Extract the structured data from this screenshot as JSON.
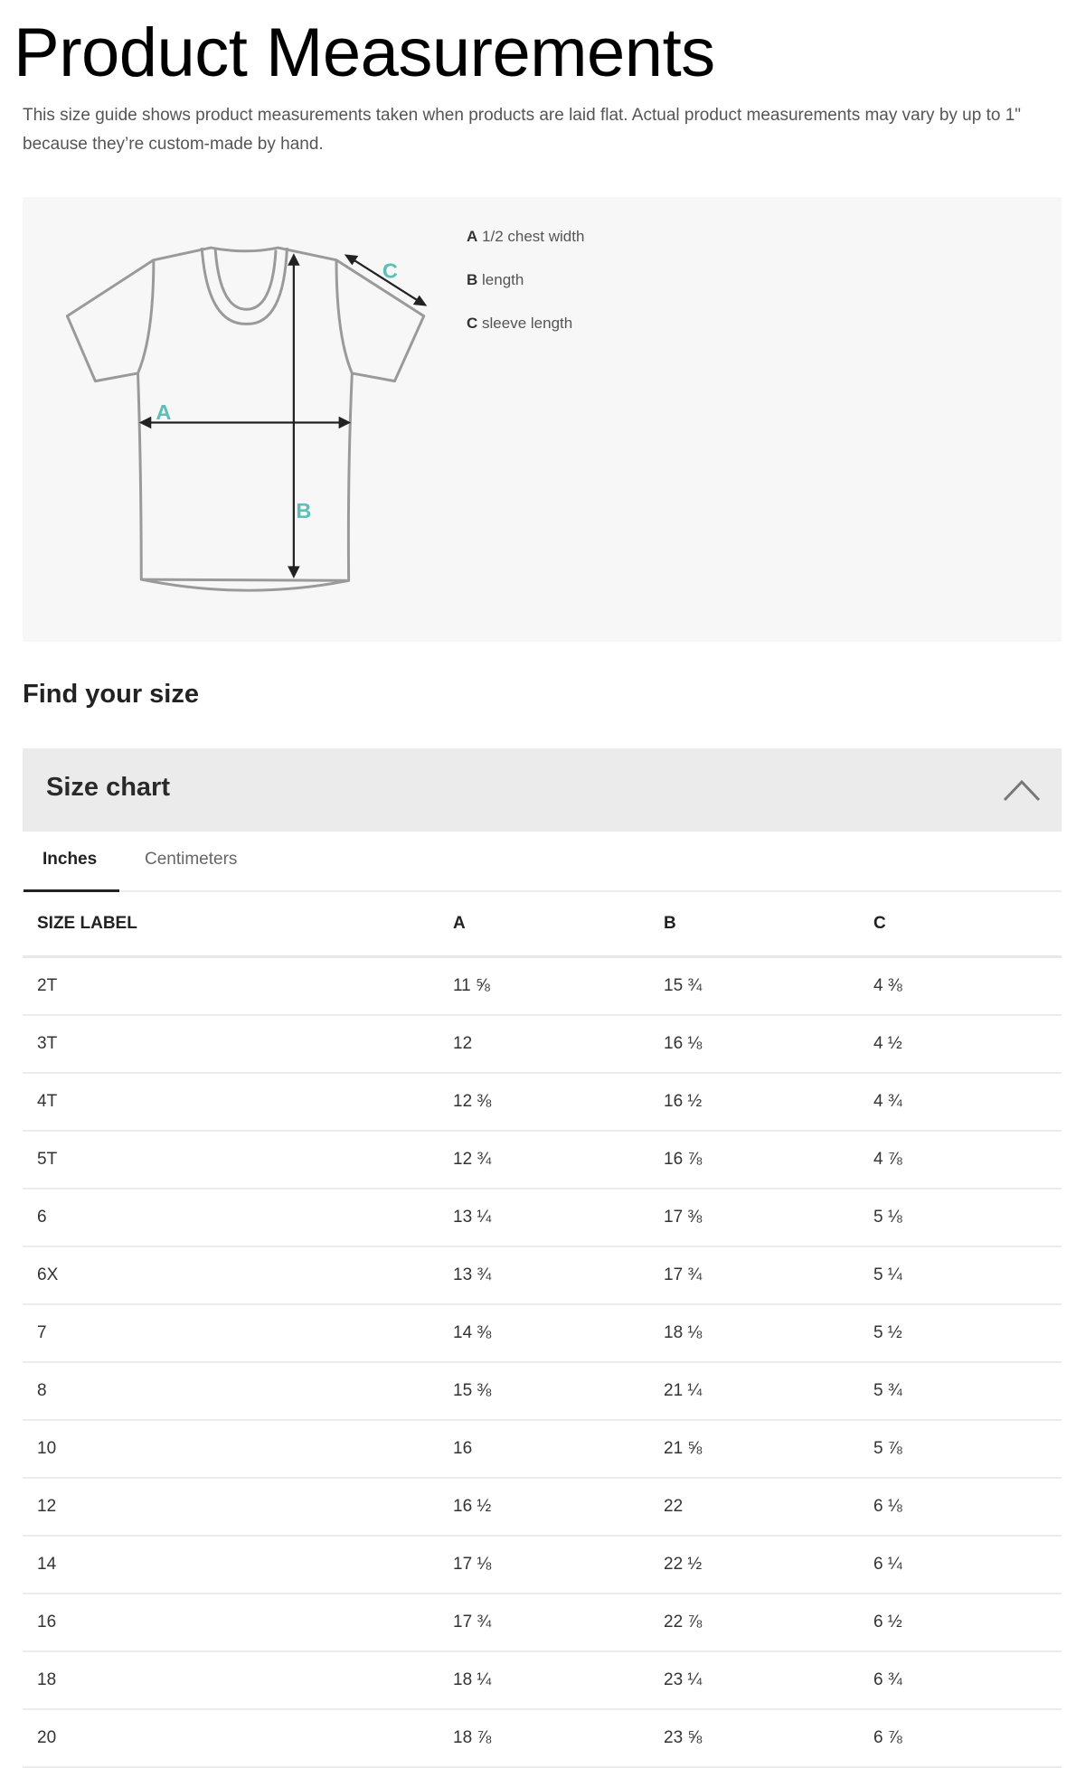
{
  "title": "Product Measurements",
  "description": "This size guide shows product measurements taken when products are laid flat. Actual product measurements may vary by up to 1\" because they’re custom-made by hand.",
  "diagram": {
    "icon": "t-shirt-measurement-diagram",
    "accent_color": "#5bbfb5",
    "labels": [
      "A",
      "B",
      "C"
    ],
    "legend": [
      {
        "key": "A",
        "text": "1/2 chest width"
      },
      {
        "key": "B",
        "text": "length"
      },
      {
        "key": "C",
        "text": "sleeve length"
      }
    ]
  },
  "find_size_heading": "Find your size",
  "accordion": {
    "title": "Size chart",
    "icon": "chevron-up-icon",
    "expanded": true
  },
  "tabs": [
    {
      "label": "Inches",
      "active": true
    },
    {
      "label": "Centimeters",
      "active": false
    }
  ],
  "table": {
    "headers": [
      "SIZE LABEL",
      "A",
      "B",
      "C"
    ],
    "rows": [
      [
        "2T",
        "11 ⅝",
        "15 ¾",
        "4 ⅜"
      ],
      [
        "3T",
        "12",
        "16 ⅛",
        "4 ½"
      ],
      [
        "4T",
        "12 ⅜",
        "16 ½",
        "4 ¾"
      ],
      [
        "5T",
        "12 ¾",
        "16 ⅞",
        "4 ⅞"
      ],
      [
        "6",
        "13 ¼",
        "17 ⅜",
        "5 ⅛"
      ],
      [
        "6X",
        "13 ¾",
        "17 ¾",
        "5 ¼"
      ],
      [
        "7",
        "14 ⅜",
        "18 ⅛",
        "5 ½"
      ],
      [
        "8",
        "15 ⅜",
        "21 ¼",
        "5 ¾"
      ],
      [
        "10",
        "16",
        "21 ⅝",
        "5 ⅞"
      ],
      [
        "12",
        "16 ½",
        "22",
        "6 ⅛"
      ],
      [
        "14",
        "17 ⅛",
        "22 ½",
        "6 ¼"
      ],
      [
        "16",
        "17 ¾",
        "22 ⅞",
        "6 ½"
      ],
      [
        "18",
        "18 ¼",
        "23 ¼",
        "6 ¾"
      ],
      [
        "20",
        "18 ⅞",
        "23 ⅝",
        "6 ⅞"
      ]
    ]
  }
}
